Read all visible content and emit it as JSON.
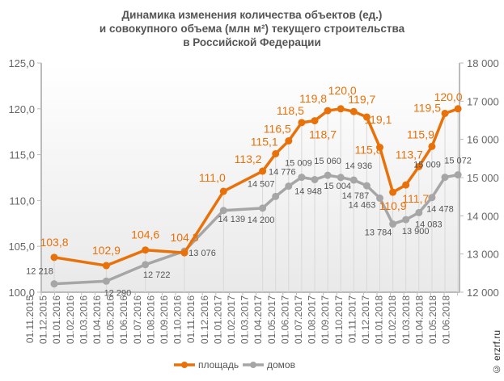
{
  "chart_data": {
    "type": "line",
    "title_lines": [
      "Динамика изменения количества объектов (ед.)",
      "и совокупного объема (млн м²) текущего строительства",
      "в Российской Федерации"
    ],
    "categories": [
      "01.11.2015",
      "01.12.2015",
      "01.01.2016",
      "01.02.2016",
      "01.03.2016",
      "01.04.2016",
      "01.05.2016",
      "01.06.2016",
      "01.07.2016",
      "01.08.2016",
      "01.09.2016",
      "01.10.2016",
      "01.11.2016",
      "01.12.2016",
      "01.01.2017",
      "01.02.2017",
      "01.03.2017",
      "01.04.2017",
      "01.05.2017",
      "01.06.2017",
      "01.07.2017",
      "01.08.2017",
      "01.09.2017",
      "01.10.2017",
      "01.11.2017",
      "01.12.2017",
      "01.01.2018",
      "01.02.2018",
      "01.03.2018",
      "01.04.2018",
      "01.05.2018",
      "01.06.2018"
    ],
    "x": [
      "01.11.2015",
      "01.03.2016",
      "01.06.2016",
      "01.09.2016",
      "01.12.2016",
      "01.03.2017",
      "01.04.2017",
      "01.05.2017",
      "01.06.2017",
      "01.07.2017",
      "01.08.2017",
      "01.09.2017",
      "01.10.2017",
      "01.11.2017",
      "01.12.2017",
      "01.01.2018",
      "01.02.2018",
      "01.03.2018",
      "01.04.2018",
      "01.05.2018",
      "01.06.2018"
    ],
    "series": [
      {
        "name": "площадь",
        "axis": "left",
        "color": "#e8710a",
        "values": [
          103.8,
          102.9,
          104.6,
          104.3,
          111.0,
          113.2,
          115.1,
          116.5,
          118.5,
          118.7,
          119.8,
          120.0,
          119.7,
          119.1,
          115.8,
          110.9,
          111.7,
          113.7,
          115.9,
          119.5,
          120.0
        ],
        "labels": [
          "103,8",
          "102,9",
          "104,6",
          "104,3",
          "111,0",
          "113,2",
          "115,1",
          "116,5",
          "118,5",
          "118,7",
          "119,8",
          "120,0",
          "119,7",
          "119,1",
          "115,8",
          "110,9",
          "111,7",
          "113,7",
          "115,9",
          "119,5",
          "120,0"
        ]
      },
      {
        "name": "домов",
        "axis": "right",
        "color": "#a6a6a6",
        "values": [
          12218,
          12290,
          12722,
          13076,
          14139,
          14200,
          14507,
          14776,
          15009,
          14948,
          15060,
          15004,
          14936,
          14787,
          14463,
          13784,
          13900,
          14083,
          14478,
          15009,
          15072
        ],
        "labels": [
          "12 218",
          "12 290",
          "12 722",
          "13 076",
          "14 139",
          "14 200",
          "14 507",
          "14 776",
          "15 009",
          "14 948",
          "15 060",
          "15 004",
          "14 936",
          "14 787",
          "14 463",
          "13 784",
          "13 900",
          "14 083",
          "14 478",
          "15 009",
          "15 072"
        ]
      }
    ],
    "y_left": {
      "range": [
        100,
        125
      ],
      "ticks": [
        "100,0",
        "105,0",
        "110,0",
        "115,0",
        "120,0",
        "125,0"
      ]
    },
    "y_right": {
      "range": [
        12000,
        18000
      ],
      "ticks": [
        "12 000",
        "13 000",
        "14 000",
        "15 000",
        "16 000",
        "17 000",
        "18 000"
      ]
    },
    "legend_position": "bottom",
    "grid": "vertical drop lines at data points"
  },
  "watermark": "© erzrf.ru"
}
